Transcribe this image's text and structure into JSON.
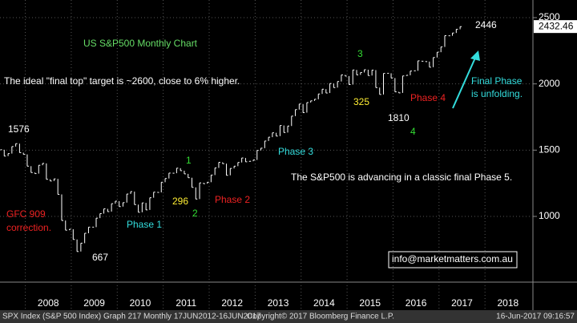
{
  "chart_data": {
    "type": "line",
    "title": "US S&P500 Monthly Chart",
    "series": [
      {
        "name": "SPX Index",
        "color": "#ffffff",
        "values": [
          1503,
          1455,
          1474,
          1527,
          1549,
          1481,
          1468,
          1379,
          1331,
          1323,
          1386,
          1400,
          1280,
          1267,
          1283,
          1166,
          969,
          896,
          903,
          826,
          735,
          798,
          873,
          919,
          919,
          987,
          1021,
          1057,
          1036,
          1096,
          1115,
          1074,
          1104,
          1169,
          1187,
          1089,
          1031,
          1102,
          1049,
          1141,
          1183,
          1181,
          1258,
          1286,
          1327,
          1326,
          1364,
          1345,
          1321,
          1292,
          1219,
          1131,
          1253,
          1247,
          1258,
          1312,
          1366,
          1408,
          1398,
          1310,
          1362,
          1379,
          1407,
          1441,
          1412,
          1416,
          1426,
          1498,
          1515,
          1569,
          1598,
          1631,
          1606,
          1686,
          1633,
          1682,
          1757,
          1806,
          1848,
          1783,
          1859,
          1872,
          1884,
          1924,
          1960,
          1931,
          2003,
          1972,
          2018,
          2068,
          2059,
          1995,
          2105,
          2068,
          2086,
          2107,
          2063,
          2104,
          1972,
          1920,
          2079,
          2080,
          2044,
          1940,
          1932,
          2060,
          2065,
          2097,
          2099,
          2174,
          2171,
          2168,
          2126,
          2199,
          2239,
          2279,
          2364,
          2363,
          2384,
          2412,
          2432
        ]
      }
    ],
    "years": [
      "2008",
      "2009",
      "2010",
      "2011",
      "2012",
      "2013",
      "2014",
      "2015",
      "2016",
      "2017",
      "2018"
    ],
    "ylim": [
      504,
      2633
    ],
    "yticks": [
      1000,
      1500,
      2000,
      2500
    ],
    "grid": true,
    "last_value": 2432.46,
    "annotations": [
      {
        "text": "The ideal \"final top\" target is ~2600, close to 6% higher.",
        "color": "#ffffff"
      },
      {
        "text": "1576",
        "color": "#ffffff"
      },
      {
        "text": "GFC 909",
        "color": "#ee2222"
      },
      {
        "text": "correction.",
        "color": "#ee2222"
      },
      {
        "text": "667",
        "color": "#ffffff"
      },
      {
        "text": "Phase 1",
        "color": "#33dddd"
      },
      {
        "text": "1",
        "color": "#33dd33"
      },
      {
        "text": "296",
        "color": "#ffee33"
      },
      {
        "text": "2",
        "color": "#33dd33"
      },
      {
        "text": "Phase 2",
        "color": "#ee2222"
      },
      {
        "text": "Phase 3",
        "color": "#33dddd"
      },
      {
        "text": "The S&P500 is advancing in a classic final Phase 5.",
        "color": "#ffffff"
      },
      {
        "text": "3",
        "color": "#33dd33"
      },
      {
        "text": "325",
        "color": "#ffee33"
      },
      {
        "text": "1810",
        "color": "#ffffff"
      },
      {
        "text": "4",
        "color": "#33dd33"
      },
      {
        "text": "Phase 4",
        "color": "#ee2222"
      },
      {
        "text": "Final Phase",
        "color": "#33dddd"
      },
      {
        "text": "is unfolding.",
        "color": "#33dddd"
      },
      {
        "text": "2446",
        "color": "#ffffff"
      },
      {
        "text": "info@marketmatters.com.au",
        "color": "#ffffff"
      }
    ],
    "title_color": "#66dd66"
  },
  "footer": {
    "left": "SPX Index (S&P 500 Index) Graph 217  Monthly 17JUN2012-16JUN2017",
    "middle": "Copyright© 2017 Bloomberg Finance L.P.",
    "right": "16-Jun-2017 09:16:57"
  }
}
